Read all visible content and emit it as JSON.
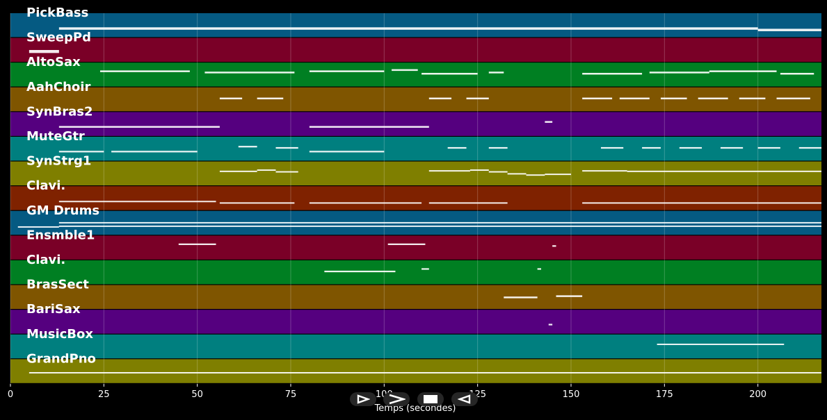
{
  "chart_data": {
    "type": "piano-roll",
    "xlabel": "Temps (secondes)",
    "xlim": [
      0,
      217
    ],
    "xticks": [
      0,
      25,
      50,
      75,
      100,
      125,
      150,
      175,
      200
    ],
    "grid": true,
    "tracks": [
      {
        "name": "PickBass",
        "color": "#055a82",
        "notes": [
          [
            13,
            200,
            0.62,
            0.28
          ],
          [
            200,
            217,
            0.68,
            0.28
          ]
        ]
      },
      {
        "name": "SweepPd",
        "color": "#7a0027",
        "notes": [
          [
            5,
            13,
            0.55,
            0.35
          ]
        ]
      },
      {
        "name": "AltoSax",
        "color": "#007f22",
        "notes": [
          [
            24,
            48,
            0.35,
            0.2
          ],
          [
            52,
            76,
            0.4,
            0.2
          ],
          [
            80,
            100,
            0.35,
            0.2
          ],
          [
            102,
            109,
            0.3,
            0.2
          ],
          [
            110,
            125,
            0.45,
            0.2
          ],
          [
            128,
            132,
            0.4,
            0.2
          ],
          [
            153,
            169,
            0.45,
            0.2
          ],
          [
            171,
            187,
            0.4,
            0.2
          ],
          [
            187,
            205,
            0.35,
            0.2
          ],
          [
            206,
            215,
            0.45,
            0.2
          ]
        ]
      },
      {
        "name": "AahChoir",
        "color": "#7f5500",
        "notes": [
          [
            56,
            62,
            0.45,
            0.2
          ],
          [
            66,
            73,
            0.45,
            0.2
          ],
          [
            112,
            118,
            0.45,
            0.2
          ],
          [
            122,
            128,
            0.45,
            0.2
          ],
          [
            153,
            161,
            0.45,
            0.2
          ],
          [
            163,
            171,
            0.45,
            0.2
          ],
          [
            174,
            181,
            0.45,
            0.2
          ],
          [
            184,
            192,
            0.45,
            0.2
          ],
          [
            195,
            202,
            0.45,
            0.2
          ],
          [
            205,
            214,
            0.45,
            0.2
          ]
        ]
      },
      {
        "name": "SynBras2",
        "color": "#55007f",
        "notes": [
          [
            13,
            56,
            0.6,
            0.2
          ],
          [
            80,
            112,
            0.6,
            0.2
          ],
          [
            143,
            145,
            0.4,
            0.2
          ]
        ]
      },
      {
        "name": "MuteGtr",
        "color": "#007f7f",
        "notes": [
          [
            13,
            25,
            0.6,
            0.18
          ],
          [
            27,
            50,
            0.6,
            0.18
          ],
          [
            61,
            66,
            0.4,
            0.18
          ],
          [
            71,
            77,
            0.45,
            0.18
          ],
          [
            80,
            100,
            0.6,
            0.18
          ],
          [
            117,
            122,
            0.45,
            0.18
          ],
          [
            128,
            133,
            0.45,
            0.18
          ],
          [
            158,
            164,
            0.45,
            0.18
          ],
          [
            169,
            174,
            0.45,
            0.18
          ],
          [
            179,
            185,
            0.45,
            0.18
          ],
          [
            190,
            196,
            0.45,
            0.18
          ],
          [
            200,
            206,
            0.45,
            0.18
          ],
          [
            211,
            217,
            0.45,
            0.18
          ]
        ]
      },
      {
        "name": "SynStrg1",
        "color": "#7f7f00",
        "notes": [
          [
            56,
            66,
            0.4,
            0.16
          ],
          [
            66,
            71,
            0.35,
            0.16
          ],
          [
            71,
            77,
            0.42,
            0.16
          ],
          [
            112,
            123,
            0.38,
            0.16
          ],
          [
            123,
            128,
            0.35,
            0.16
          ],
          [
            128,
            133,
            0.42,
            0.16
          ],
          [
            133,
            138,
            0.5,
            0.16
          ],
          [
            138,
            143,
            0.55,
            0.16
          ],
          [
            143,
            150,
            0.52,
            0.16
          ],
          [
            153,
            165,
            0.38,
            0.16
          ],
          [
            165,
            217,
            0.4,
            0.16
          ]
        ]
      },
      {
        "name": "Clavi.",
        "color": "#7f2200",
        "notes": [
          [
            13,
            55,
            0.62,
            0.14
          ],
          [
            56,
            76,
            0.68,
            0.14
          ],
          [
            80,
            110,
            0.68,
            0.14
          ],
          [
            112,
            133,
            0.68,
            0.14
          ],
          [
            153,
            217,
            0.68,
            0.14
          ]
        ]
      },
      {
        "name": "GM Drums",
        "color": "#055a82",
        "notes": [
          [
            2,
            13,
            0.65,
            0.14
          ],
          [
            13,
            217,
            0.62,
            0.14
          ],
          [
            13,
            217,
            0.48,
            0.1
          ]
        ]
      },
      {
        "name": "Ensmble1",
        "color": "#7a0027",
        "notes": [
          [
            45,
            55,
            0.35,
            0.18
          ],
          [
            101,
            111,
            0.35,
            0.18
          ],
          [
            145,
            146,
            0.42,
            0.18
          ]
        ]
      },
      {
        "name": "Clavi.",
        "color": "#007f22",
        "notes": [
          [
            84,
            103,
            0.45,
            0.18
          ],
          [
            110,
            112,
            0.35,
            0.18
          ],
          [
            141,
            142,
            0.35,
            0.18
          ]
        ]
      },
      {
        "name": "BrasSect",
        "color": "#7f5500",
        "notes": [
          [
            132,
            141,
            0.5,
            0.2
          ],
          [
            146,
            153,
            0.45,
            0.2
          ]
        ]
      },
      {
        "name": "BariSax",
        "color": "#55007f",
        "notes": [
          [
            144,
            145,
            0.6,
            0.18
          ]
        ]
      },
      {
        "name": "MusicBox",
        "color": "#007f7f",
        "notes": [
          [
            173,
            207,
            0.4,
            0.16
          ]
        ]
      },
      {
        "name": "GrandPno",
        "color": "#7f7f00",
        "notes": [
          [
            5,
            217,
            0.55,
            0.16
          ]
        ]
      }
    ]
  },
  "controls": [
    {
      "name": "play-button",
      "icon": "play-icon"
    },
    {
      "name": "fast-forward-button",
      "icon": "fast-forward-icon"
    },
    {
      "name": "stop-button",
      "icon": "stop-icon"
    },
    {
      "name": "rewind-button",
      "icon": "rewind-icon"
    }
  ]
}
